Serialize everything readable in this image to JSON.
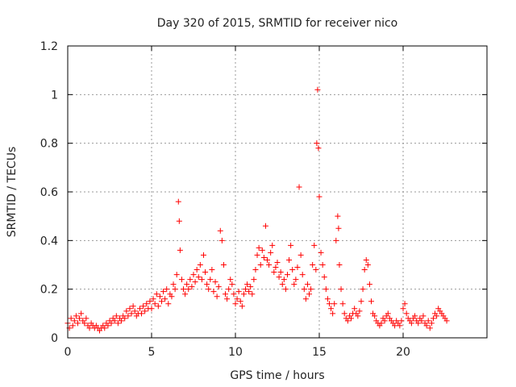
{
  "chart_data": {
    "type": "scatter",
    "title": "Day 320 of 2015, SRMTID for receiver nico",
    "xlabel": "GPS time / hours",
    "ylabel": "SRMTID / TECUs",
    "xlim": [
      0,
      25
    ],
    "ylim": [
      0,
      1.2
    ],
    "x_ticks": [
      0,
      5,
      10,
      15,
      20
    ],
    "x_tick_labels": [
      "0",
      "5",
      "10",
      "15",
      "20"
    ],
    "y_ticks": [
      0,
      0.2,
      0.4,
      0.6,
      0.8,
      1,
      1.2
    ],
    "y_tick_labels": [
      "0",
      "0.2",
      "0.4",
      "0.6",
      "0.8",
      "1",
      "1.2"
    ],
    "grid": true,
    "marker": "plus",
    "color": "#ff0000",
    "series": [
      {
        "name": "SRMTID",
        "x": [
          0.0,
          0.1,
          0.2,
          0.3,
          0.4,
          0.5,
          0.6,
          0.7,
          0.8,
          0.9,
          1.0,
          1.1,
          1.2,
          1.3,
          1.4,
          1.5,
          1.6,
          1.7,
          1.8,
          1.9,
          2.0,
          2.1,
          2.2,
          2.3,
          2.4,
          2.5,
          2.6,
          2.7,
          2.8,
          2.9,
          3.0,
          3.1,
          3.2,
          3.3,
          3.4,
          3.5,
          3.6,
          3.7,
          3.8,
          3.9,
          4.0,
          4.1,
          4.2,
          4.3,
          4.4,
          4.5,
          4.6,
          4.7,
          4.8,
          4.9,
          5.0,
          5.1,
          5.2,
          5.3,
          5.4,
          5.5,
          5.6,
          5.7,
          5.8,
          5.9,
          6.0,
          6.1,
          6.2,
          6.3,
          6.4,
          6.5,
          6.6,
          6.65,
          6.7,
          6.8,
          6.9,
          7.0,
          7.1,
          7.2,
          7.3,
          7.4,
          7.5,
          7.6,
          7.7,
          7.8,
          7.9,
          8.0,
          8.1,
          8.2,
          8.3,
          8.4,
          8.5,
          8.6,
          8.7,
          8.8,
          8.9,
          9.0,
          9.1,
          9.2,
          9.3,
          9.4,
          9.5,
          9.6,
          9.7,
          9.8,
          9.9,
          10.0,
          10.1,
          10.2,
          10.3,
          10.4,
          10.5,
          10.6,
          10.7,
          10.8,
          10.9,
          11.0,
          11.1,
          11.2,
          11.3,
          11.4,
          11.5,
          11.6,
          11.7,
          11.8,
          11.9,
          12.0,
          12.1,
          12.2,
          12.3,
          12.4,
          12.5,
          12.6,
          12.7,
          12.8,
          12.9,
          13.0,
          13.1,
          13.2,
          13.3,
          13.4,
          13.5,
          13.6,
          13.7,
          13.8,
          13.9,
          14.0,
          14.1,
          14.2,
          14.3,
          14.4,
          14.5,
          14.6,
          14.7,
          14.8,
          14.85,
          14.9,
          14.95,
          15.0,
          15.1,
          15.2,
          15.3,
          15.4,
          15.5,
          15.6,
          15.7,
          15.8,
          15.9,
          16.0,
          16.1,
          16.15,
          16.2,
          16.3,
          16.4,
          16.5,
          16.6,
          16.7,
          16.8,
          16.9,
          17.0,
          17.1,
          17.2,
          17.3,
          17.4,
          17.5,
          17.6,
          17.7,
          17.8,
          17.9,
          18.0,
          18.1,
          18.2,
          18.3,
          18.4,
          18.5,
          18.6,
          18.7,
          18.8,
          18.9,
          19.0,
          19.1,
          19.2,
          19.3,
          19.4,
          19.5,
          19.6,
          19.7,
          19.8,
          19.9,
          20.0,
          20.1,
          20.2,
          20.3,
          20.4,
          20.5,
          20.6,
          20.7,
          20.8,
          20.9,
          21.0,
          21.1,
          21.2,
          21.3,
          21.4,
          21.5,
          21.6,
          21.7,
          21.8,
          21.9,
          22.0,
          22.1,
          22.2,
          22.3,
          22.4,
          22.5,
          22.6
        ],
        "y": [
          0.06,
          0.04,
          0.08,
          0.05,
          0.07,
          0.09,
          0.06,
          0.08,
          0.1,
          0.07,
          0.06,
          0.08,
          0.05,
          0.04,
          0.06,
          0.05,
          0.04,
          0.05,
          0.04,
          0.03,
          0.04,
          0.05,
          0.04,
          0.06,
          0.05,
          0.07,
          0.06,
          0.08,
          0.07,
          0.09,
          0.06,
          0.08,
          0.07,
          0.09,
          0.08,
          0.11,
          0.09,
          0.12,
          0.1,
          0.13,
          0.11,
          0.09,
          0.1,
          0.12,
          0.1,
          0.13,
          0.11,
          0.14,
          0.12,
          0.15,
          0.12,
          0.16,
          0.14,
          0.18,
          0.13,
          0.17,
          0.15,
          0.19,
          0.16,
          0.2,
          0.14,
          0.18,
          0.17,
          0.22,
          0.2,
          0.26,
          0.56,
          0.48,
          0.36,
          0.24,
          0.2,
          0.18,
          0.22,
          0.2,
          0.24,
          0.21,
          0.26,
          0.23,
          0.28,
          0.25,
          0.3,
          0.24,
          0.34,
          0.27,
          0.22,
          0.2,
          0.24,
          0.28,
          0.19,
          0.23,
          0.17,
          0.21,
          0.44,
          0.4,
          0.3,
          0.18,
          0.16,
          0.2,
          0.24,
          0.22,
          0.18,
          0.14,
          0.16,
          0.19,
          0.15,
          0.13,
          0.18,
          0.2,
          0.22,
          0.19,
          0.21,
          0.18,
          0.24,
          0.28,
          0.34,
          0.37,
          0.3,
          0.36,
          0.33,
          0.46,
          0.32,
          0.3,
          0.35,
          0.38,
          0.27,
          0.29,
          0.31,
          0.25,
          0.27,
          0.22,
          0.24,
          0.2,
          0.26,
          0.32,
          0.38,
          0.28,
          0.22,
          0.24,
          0.29,
          0.62,
          0.34,
          0.26,
          0.2,
          0.16,
          0.22,
          0.18,
          0.2,
          0.3,
          0.38,
          0.28,
          0.8,
          1.02,
          0.78,
          0.58,
          0.35,
          0.3,
          0.25,
          0.2,
          0.16,
          0.14,
          0.12,
          0.1,
          0.14,
          0.4,
          0.5,
          0.45,
          0.3,
          0.2,
          0.14,
          0.1,
          0.08,
          0.07,
          0.09,
          0.08,
          0.1,
          0.12,
          0.1,
          0.09,
          0.11,
          0.15,
          0.2,
          0.28,
          0.32,
          0.3,
          0.22,
          0.15,
          0.1,
          0.09,
          0.07,
          0.06,
          0.05,
          0.06,
          0.08,
          0.07,
          0.09,
          0.1,
          0.08,
          0.07,
          0.06,
          0.05,
          0.07,
          0.06,
          0.05,
          0.07,
          0.12,
          0.14,
          0.1,
          0.08,
          0.07,
          0.06,
          0.08,
          0.09,
          0.07,
          0.06,
          0.08,
          0.07,
          0.09,
          0.06,
          0.05,
          0.07,
          0.04,
          0.06,
          0.08,
          0.1,
          0.09,
          0.12,
          0.11,
          0.1,
          0.09,
          0.08,
          0.07
        ]
      }
    ]
  }
}
